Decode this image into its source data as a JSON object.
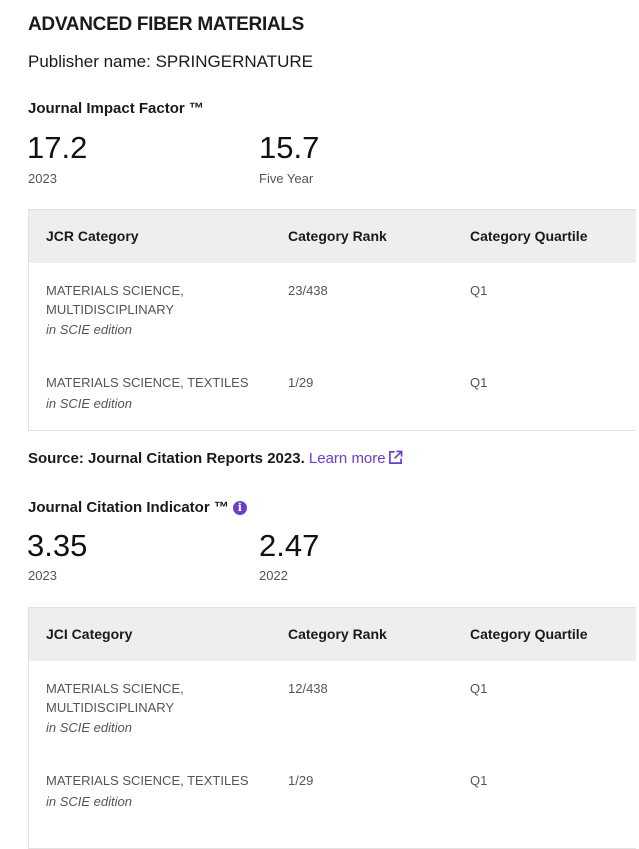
{
  "journal_title": "ADVANCED FIBER MATERIALS",
  "publisher": "Publisher name: SPRINGERNATURE",
  "jif": {
    "heading": "Journal Impact Factor ™",
    "metrics": [
      {
        "value": "17.2",
        "label": "2023"
      },
      {
        "value": "15.7",
        "label": "Five Year"
      }
    ],
    "table": {
      "headers": [
        "JCR Category",
        "Category Rank",
        "Category Quartile"
      ],
      "rows": [
        {
          "category": "MATERIALS SCIENCE, MULTIDISCIPLINARY",
          "edition": "in SCIE edition",
          "rank": "23/438",
          "quartile": "Q1"
        },
        {
          "category": "MATERIALS SCIENCE, TEXTILES",
          "edition": "in SCIE edition",
          "rank": "1/29",
          "quartile": "Q1"
        }
      ]
    }
  },
  "source": {
    "text": "Source: Journal Citation Reports  2023.",
    "link": "Learn more"
  },
  "jci": {
    "heading": "Journal Citation Indicator ™",
    "metrics": [
      {
        "value": "3.35",
        "label": "2023"
      },
      {
        "value": "2.47",
        "label": "2022"
      }
    ],
    "table": {
      "headers": [
        "JCI Category",
        "Category Rank",
        "Category Quartile"
      ],
      "rows": [
        {
          "category": "MATERIALS SCIENCE, MULTIDISCIPLINARY",
          "edition": "in SCIE edition",
          "rank": "12/438",
          "quartile": "Q1"
        },
        {
          "category": "MATERIALS SCIENCE, TEXTILES",
          "edition": "in SCIE edition",
          "rank": "1/29",
          "quartile": "Q1"
        }
      ]
    }
  },
  "colors": {
    "accent": "#6b3fc9",
    "header_bg": "#eeeeee"
  },
  "icons": {
    "external_link": "external-link-icon",
    "info": "info-icon"
  }
}
